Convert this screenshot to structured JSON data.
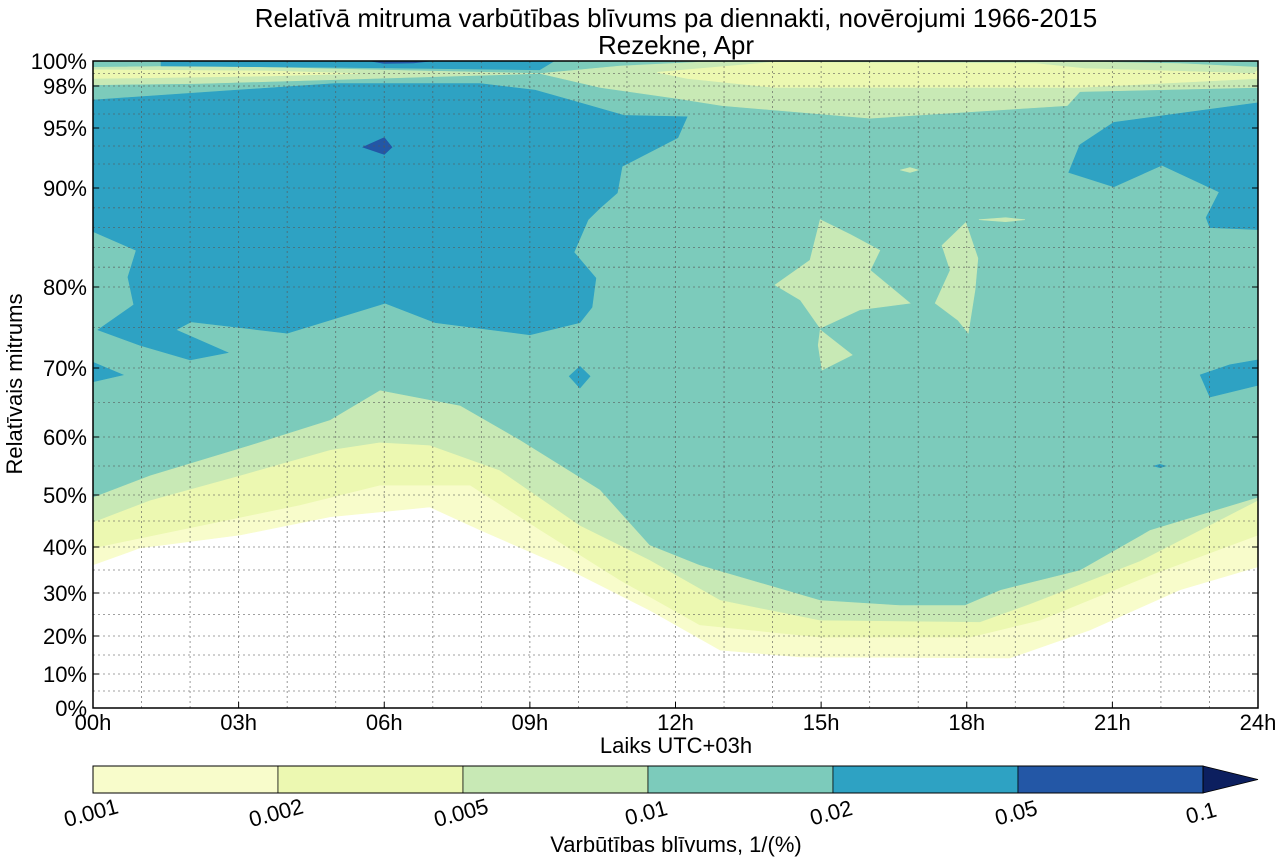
{
  "chart_data": {
    "type": "contour",
    "title": "Relatīvā mitruma varbūtības blīvums pa diennakti, novērojumi 1966-2015",
    "subtitle": "Rezekne, Apr",
    "xlabel": "Laiks UTC+03h",
    "ylabel": "Relatīvais mitrums",
    "xlim": [
      0,
      24
    ],
    "ylim": [
      0,
      100
    ],
    "xticks": [
      0,
      3,
      6,
      9,
      12,
      15,
      18,
      21,
      24
    ],
    "xtick_labels": [
      "00h",
      "03h",
      "06h",
      "09h",
      "12h",
      "15h",
      "18h",
      "21h",
      "24h"
    ],
    "yticks": [
      0,
      10,
      20,
      30,
      40,
      50,
      60,
      70,
      80,
      90,
      95,
      98,
      100
    ],
    "ytick_labels": [
      "0%",
      "10%",
      "20%",
      "30%",
      "40%",
      "50%",
      "60%",
      "70%",
      "80%",
      "90%",
      "95%",
      "98%",
      "100%"
    ],
    "y_minor_grid": [
      99,
      97,
      96,
      93.5,
      92,
      88,
      86,
      84,
      82,
      75,
      65,
      55,
      45,
      35,
      25,
      15,
      5
    ],
    "grid": true,
    "levels": [
      0.001,
      0.002,
      0.005,
      0.01,
      0.02,
      0.05,
      0.1
    ],
    "level_colors": [
      "#f8fccb",
      "#ecf8b1",
      "#c8e9b5",
      "#7ccbbb",
      "#2ea2c3",
      "#2357a6",
      "#0c1f5f"
    ],
    "colorbar": {
      "label": "Varbūtības blīvums, 1/(%)",
      "tick_labels": [
        "0.001",
        "0.002",
        "0.005",
        "0.01",
        "0.02",
        "0.05",
        "0.1"
      ],
      "extend": "max"
    },
    "regions": [
      {
        "level": 0,
        "points": [
          [
            0,
            36.1
          ],
          [
            0.97,
            39.8
          ],
          [
            3.03,
            42.3
          ],
          [
            4.88,
            45.8
          ],
          [
            6.94,
            47.7
          ],
          [
            7.97,
            43.3
          ],
          [
            9.62,
            36.1
          ],
          [
            11.47,
            26
          ],
          [
            12.92,
            16.3
          ],
          [
            14.57,
            14.5
          ],
          [
            18.89,
            14.2
          ],
          [
            20.54,
            21.4
          ],
          [
            22.39,
            30.7
          ],
          [
            24,
            35.7
          ],
          [
            24,
            100
          ],
          [
            0,
            100
          ]
        ]
      },
      {
        "level": 1,
        "points": [
          [
            0,
            39.8
          ],
          [
            1.79,
            43.3
          ],
          [
            4.26,
            48.1
          ],
          [
            5.91,
            51.7
          ],
          [
            7.77,
            51.7
          ],
          [
            9.21,
            43.3
          ],
          [
            10.86,
            32.8
          ],
          [
            12.5,
            22.6
          ],
          [
            14.98,
            19.7
          ],
          [
            18.07,
            19.7
          ],
          [
            19.51,
            23.7
          ],
          [
            21.78,
            33.9
          ],
          [
            24,
            42.3
          ],
          [
            24,
            100
          ],
          [
            0,
            100
          ]
        ]
      },
      {
        "level": 2,
        "points": [
          [
            0,
            44.8
          ],
          [
            1.17,
            49
          ],
          [
            3.03,
            53.4
          ],
          [
            4.88,
            57.8
          ],
          [
            5.91,
            59.1
          ],
          [
            6.94,
            58.6
          ],
          [
            8.38,
            54.3
          ],
          [
            10.03,
            44.2
          ],
          [
            11.47,
            37.2
          ],
          [
            12.92,
            28.4
          ],
          [
            14.98,
            23.7
          ],
          [
            18.27,
            23.3
          ],
          [
            19.3,
            27.5
          ],
          [
            21.57,
            37
          ],
          [
            24,
            49
          ],
          [
            24,
            100
          ],
          [
            0,
            100
          ]
        ]
      },
      {
        "level": 3,
        "points": [
          [
            0,
            49.6
          ],
          [
            1.17,
            53.4
          ],
          [
            3.23,
            58.6
          ],
          [
            4.88,
            62.5
          ],
          [
            5.91,
            66.8
          ],
          [
            6.94,
            65.4
          ],
          [
            7.56,
            64.6
          ],
          [
            8.8,
            59.5
          ],
          [
            10.45,
            50.9
          ],
          [
            11.47,
            40.4
          ],
          [
            12.5,
            36.1
          ],
          [
            14.98,
            28.4
          ],
          [
            16.63,
            27.2
          ],
          [
            17.96,
            27.2
          ],
          [
            18.69,
            30.7
          ],
          [
            20.33,
            35
          ],
          [
            21.78,
            43.3
          ],
          [
            24,
            49.6
          ],
          [
            24,
            100
          ],
          [
            0,
            100
          ]
        ]
      },
      {
        "level": 2,
        "points": [
          [
            0,
            99.5
          ],
          [
            2.2,
            99.6
          ],
          [
            9.2,
            99.0
          ],
          [
            2.2,
            98.2
          ],
          [
            0,
            98.1
          ]
        ]
      },
      {
        "level": 1,
        "points": [
          [
            0,
            99.3
          ],
          [
            3.65,
            99.2
          ],
          [
            5.5,
            99.0
          ],
          [
            3.65,
            98.8
          ],
          [
            0,
            98.6
          ]
        ]
      },
      {
        "level": 2,
        "points": [
          [
            9.21,
            99.0
          ],
          [
            10.86,
            99.6
          ],
          [
            12.5,
            99.9
          ],
          [
            20.75,
            99.9
          ],
          [
            22.39,
            99.8
          ],
          [
            24,
            99.5
          ],
          [
            24,
            97.9
          ],
          [
            20.33,
            97.6
          ],
          [
            20.07,
            96.6
          ],
          [
            16.01,
            95.7
          ],
          [
            12.96,
            96.6
          ],
          [
            12.05,
            97.1
          ],
          [
            10.45,
            97.9
          ]
        ]
      },
      {
        "level": 1,
        "points": [
          [
            11.62,
            99.1
          ],
          [
            14.03,
            99.9
          ],
          [
            19.43,
            99.8
          ],
          [
            20.42,
            99.4
          ],
          [
            23.92,
            99.0
          ],
          [
            24,
            99.3
          ],
          [
            24,
            98.6
          ],
          [
            20.33,
            97.9
          ],
          [
            18.52,
            97.9
          ],
          [
            14.03,
            97.9
          ],
          [
            12.24,
            98.6
          ]
        ]
      },
      {
        "level": 4,
        "points": [
          [
            1.4,
            100
          ],
          [
            9.5,
            100
          ],
          [
            9.2,
            99.3
          ],
          [
            5,
            99.5
          ],
          [
            1.4,
            99.6
          ]
        ]
      },
      {
        "level": 5,
        "points": [
          [
            5.7,
            100
          ],
          [
            6.99,
            100
          ],
          [
            6.6,
            99.85
          ],
          [
            6.0,
            99.8
          ]
        ]
      },
      {
        "level": 4,
        "points": [
          [
            0,
            97.0
          ],
          [
            2.95,
            97.7
          ],
          [
            4.99,
            98.2
          ],
          [
            7.97,
            98.2
          ],
          [
            9.11,
            97.7
          ],
          [
            10.03,
            96.8
          ],
          [
            10.94,
            95.9
          ],
          [
            12.24,
            95.8
          ],
          [
            12.05,
            94.2
          ],
          [
            10.9,
            91.8
          ],
          [
            10.8,
            89.5
          ],
          [
            10.45,
            88.0
          ],
          [
            10.2,
            86.8
          ],
          [
            9.91,
            83.5
          ],
          [
            10.36,
            80.9
          ],
          [
            10.28,
            77.5
          ],
          [
            10.03,
            75.6
          ],
          [
            9.0,
            74.1
          ],
          [
            7.05,
            75.6
          ],
          [
            6.02,
            78.0
          ],
          [
            4.0,
            74.3
          ],
          [
            2.02,
            75.7
          ],
          [
            1.71,
            74.7
          ],
          [
            2.78,
            71.9
          ],
          [
            2.0,
            71.0
          ],
          [
            0.97,
            72.8
          ],
          [
            0.1,
            74.7
          ],
          [
            0.84,
            77.8
          ],
          [
            0.72,
            81.0
          ],
          [
            0.89,
            83.7
          ],
          [
            0,
            85.6
          ]
        ]
      },
      {
        "level": 5,
        "points": [
          [
            5.56,
            93.4
          ],
          [
            6.0,
            94.2
          ],
          [
            6.16,
            93.4
          ],
          [
            6.0,
            92.8
          ]
        ]
      },
      {
        "level": 4,
        "points": [
          [
            0,
            70.7
          ],
          [
            0.62,
            69.0
          ],
          [
            0,
            68.0
          ]
        ]
      },
      {
        "level": 4,
        "points": [
          [
            10.03,
            70.2
          ],
          [
            10.24,
            68.8
          ],
          [
            10.03,
            67.1
          ],
          [
            9.81,
            68.8
          ]
        ]
      },
      {
        "level": 4,
        "points": [
          [
            24,
            96.8
          ],
          [
            21.03,
            95.4
          ],
          [
            20.33,
            93.6
          ],
          [
            20.1,
            91.3
          ],
          [
            21.03,
            90.1
          ],
          [
            22.02,
            91.9
          ],
          [
            23.2,
            89.6
          ],
          [
            22.93,
            87.0
          ],
          [
            23.01,
            86.0
          ],
          [
            24,
            85.8
          ]
        ]
      },
      {
        "level": 4,
        "points": [
          [
            22.81,
            69.0
          ],
          [
            23.42,
            70.4
          ],
          [
            24,
            71.0
          ],
          [
            24,
            67.5
          ],
          [
            23.01,
            65.8
          ]
        ]
      },
      {
        "level": 4,
        "points": [
          [
            21.85,
            55
          ],
          [
            21.98,
            55.3
          ],
          [
            22.1,
            55
          ],
          [
            21.98,
            54.7
          ]
        ]
      },
      {
        "level": 2,
        "points": [
          [
            14.98,
            86.8
          ],
          [
            15.6,
            85.3
          ],
          [
            16.21,
            83.7
          ],
          [
            16.01,
            81.7
          ],
          [
            16.83,
            78.0
          ],
          [
            15.8,
            77.2
          ],
          [
            14.98,
            74.9
          ],
          [
            14.57,
            78.4
          ],
          [
            14.05,
            80.2
          ],
          [
            14.77,
            82.7
          ]
        ]
      },
      {
        "level": 2,
        "points": [
          [
            14.98,
            74.7
          ],
          [
            15.64,
            71.6
          ],
          [
            15.02,
            69.7
          ],
          [
            14.94,
            72.8
          ]
        ]
      },
      {
        "level": 2,
        "points": [
          [
            17.98,
            86.5
          ],
          [
            18.23,
            82.9
          ],
          [
            18.17,
            79.6
          ],
          [
            18.03,
            74.3
          ],
          [
            17.82,
            75.9
          ],
          [
            17.35,
            78.0
          ],
          [
            17.66,
            81.7
          ],
          [
            17.49,
            84.2
          ]
        ]
      },
      {
        "level": 2,
        "points": [
          [
            16.63,
            91.5
          ],
          [
            16.83,
            91.7
          ],
          [
            17.0,
            91.5
          ],
          [
            16.83,
            91.3
          ]
        ]
      },
      {
        "level": 2,
        "points": [
          [
            18.25,
            86.8
          ],
          [
            18.8,
            87.0
          ],
          [
            19.2,
            86.8
          ],
          [
            18.8,
            86.6
          ]
        ]
      }
    ]
  }
}
